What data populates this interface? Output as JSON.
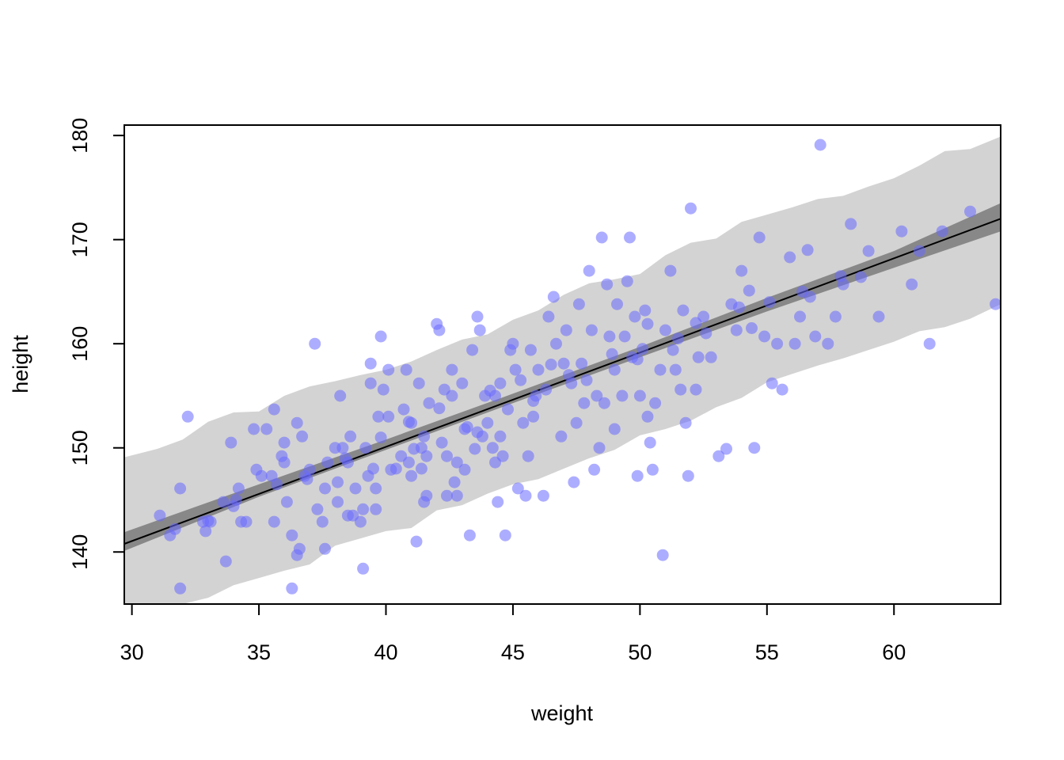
{
  "chart_data": {
    "type": "scatter",
    "xlabel": "weight",
    "ylabel": "height",
    "xlim": [
      29.7,
      64.2
    ],
    "ylim": [
      135,
      181
    ],
    "x_ticks": [
      30,
      35,
      40,
      45,
      50,
      55,
      60
    ],
    "y_ticks": [
      140,
      150,
      160,
      170,
      180
    ],
    "x_tick_labels": [
      "30",
      "35",
      "40",
      "45",
      "50",
      "55",
      "60"
    ],
    "y_tick_labels": [
      "140",
      "150",
      "160",
      "170",
      "180"
    ],
    "grid": false,
    "colors": {
      "points": "#6a6aff",
      "mean_line": "#000000",
      "mean_interval": "#888888",
      "prediction_interval": "#d3d3d3"
    },
    "mean_line": {
      "intercept": 113.9,
      "slope": 0.905
    },
    "mean_interval": {
      "x": [
        29.7,
        35,
        40,
        45,
        50,
        55,
        60,
        64.2
      ],
      "lower": [
        140.1,
        145.3,
        149.8,
        154.3,
        158.7,
        163.1,
        167.3,
        170.8
      ],
      "upper": [
        141.9,
        146.5,
        150.8,
        155.2,
        159.7,
        164.4,
        168.9,
        173.5
      ]
    },
    "prediction_interval": {
      "x": [
        29.7,
        31,
        32,
        33,
        34,
        35,
        36,
        37,
        38,
        39,
        40,
        41,
        42,
        43,
        44,
        45,
        46,
        47,
        48,
        49,
        50,
        51,
        52,
        53,
        54,
        55,
        56,
        57,
        58,
        59,
        60,
        61,
        62,
        63,
        64.2
      ],
      "lower": [
        134.5,
        134.8,
        135.0,
        135.6,
        136.8,
        137.5,
        138.2,
        138.8,
        140.6,
        141.3,
        142.0,
        142.3,
        144.0,
        144.5,
        145.6,
        146.5,
        147.0,
        148.0,
        149.0,
        149.8,
        151.2,
        151.8,
        152.6,
        153.9,
        154.8,
        156.3,
        157.1,
        157.9,
        158.6,
        159.4,
        160.2,
        161.2,
        161.6,
        162.4,
        163.8
      ],
      "upper": [
        149.1,
        149.9,
        150.8,
        152.5,
        153.4,
        153.5,
        155.0,
        155.9,
        156.4,
        157.0,
        157.5,
        158.3,
        159.4,
        160.4,
        160.9,
        162.3,
        163.2,
        164.7,
        165.8,
        166.2,
        166.7,
        168.5,
        169.7,
        170.1,
        171.7,
        172.4,
        173.1,
        173.9,
        174.2,
        175.1,
        175.9,
        177.1,
        178.5,
        178.7,
        179.9
      ]
    },
    "points": [
      [
        31.1,
        143.5
      ],
      [
        31.5,
        141.6
      ],
      [
        31.7,
        142.2
      ],
      [
        31.9,
        146.1
      ],
      [
        31.9,
        136.5
      ],
      [
        32.2,
        153.0
      ],
      [
        32.8,
        142.9
      ],
      [
        32.9,
        142.0
      ],
      [
        33.1,
        142.9
      ],
      [
        33.6,
        144.8
      ],
      [
        33.7,
        139.1
      ],
      [
        33.9,
        150.5
      ],
      [
        34.0,
        144.4
      ],
      [
        34.2,
        146.1
      ],
      [
        34.3,
        142.9
      ],
      [
        34.5,
        142.9
      ],
      [
        34.8,
        151.8
      ],
      [
        34.9,
        147.9
      ],
      [
        35.1,
        147.3
      ],
      [
        35.3,
        151.8
      ],
      [
        35.5,
        147.3
      ],
      [
        35.6,
        153.7
      ],
      [
        35.6,
        142.9
      ],
      [
        35.7,
        146.5
      ],
      [
        35.9,
        149.2
      ],
      [
        36.0,
        148.6
      ],
      [
        36.0,
        150.5
      ],
      [
        36.1,
        144.8
      ],
      [
        36.3,
        141.6
      ],
      [
        36.3,
        136.5
      ],
      [
        36.5,
        139.7
      ],
      [
        36.5,
        152.4
      ],
      [
        36.6,
        140.3
      ],
      [
        36.7,
        151.1
      ],
      [
        36.8,
        147.3
      ],
      [
        37.0,
        147.9
      ],
      [
        37.2,
        160.0
      ],
      [
        37.3,
        144.1
      ],
      [
        37.5,
        142.9
      ],
      [
        37.6,
        140.3
      ],
      [
        37.6,
        146.1
      ],
      [
        37.7,
        148.6
      ],
      [
        38.0,
        150.0
      ],
      [
        38.1,
        146.7
      ],
      [
        38.1,
        144.8
      ],
      [
        38.2,
        155.0
      ],
      [
        38.3,
        150.0
      ],
      [
        38.5,
        143.5
      ],
      [
        38.5,
        148.6
      ],
      [
        38.6,
        151.1
      ],
      [
        38.7,
        143.5
      ],
      [
        38.8,
        146.1
      ],
      [
        39.0,
        142.9
      ],
      [
        39.1,
        144.1
      ],
      [
        39.1,
        138.4
      ],
      [
        39.2,
        150.0
      ],
      [
        39.3,
        147.3
      ],
      [
        39.4,
        156.2
      ],
      [
        39.4,
        158.1
      ],
      [
        39.5,
        148.0
      ],
      [
        39.6,
        146.1
      ],
      [
        39.6,
        144.1
      ],
      [
        39.7,
        153.0
      ],
      [
        39.8,
        160.7
      ],
      [
        39.9,
        155.6
      ],
      [
        40.1,
        153.0
      ],
      [
        40.1,
        157.5
      ],
      [
        40.2,
        147.9
      ],
      [
        40.4,
        148.0
      ],
      [
        40.6,
        149.2
      ],
      [
        40.7,
        153.7
      ],
      [
        40.8,
        157.5
      ],
      [
        40.9,
        148.6
      ],
      [
        41.0,
        147.3
      ],
      [
        41.0,
        152.4
      ],
      [
        41.1,
        149.9
      ],
      [
        41.2,
        141.0
      ],
      [
        41.3,
        156.2
      ],
      [
        41.4,
        148.0
      ],
      [
        41.5,
        144.8
      ],
      [
        41.5,
        151.1
      ],
      [
        41.6,
        149.2
      ],
      [
        41.6,
        145.4
      ],
      [
        41.7,
        154.3
      ],
      [
        42.0,
        161.9
      ],
      [
        42.1,
        161.3
      ],
      [
        42.2,
        150.5
      ],
      [
        42.3,
        155.6
      ],
      [
        42.4,
        149.2
      ],
      [
        42.4,
        145.4
      ],
      [
        42.6,
        155.0
      ],
      [
        42.6,
        157.5
      ],
      [
        42.7,
        146.7
      ],
      [
        42.8,
        145.4
      ],
      [
        42.8,
        148.6
      ],
      [
        43.0,
        156.2
      ],
      [
        43.1,
        147.9
      ],
      [
        43.1,
        151.8
      ],
      [
        43.3,
        141.6
      ],
      [
        43.4,
        159.4
      ],
      [
        43.5,
        149.9
      ],
      [
        43.6,
        162.6
      ],
      [
        43.7,
        161.3
      ],
      [
        43.8,
        151.1
      ],
      [
        43.9,
        155.0
      ],
      [
        44.0,
        152.4
      ],
      [
        44.2,
        150.0
      ],
      [
        44.3,
        155.0
      ],
      [
        44.3,
        148.6
      ],
      [
        44.4,
        144.8
      ],
      [
        44.5,
        151.1
      ],
      [
        44.5,
        156.2
      ],
      [
        44.6,
        149.2
      ],
      [
        44.7,
        141.6
      ],
      [
        44.8,
        153.7
      ],
      [
        44.9,
        159.4
      ],
      [
        45.0,
        160.0
      ],
      [
        45.1,
        157.5
      ],
      [
        45.2,
        146.1
      ],
      [
        45.4,
        152.4
      ],
      [
        45.5,
        145.4
      ],
      [
        45.6,
        149.2
      ],
      [
        45.7,
        159.4
      ],
      [
        45.8,
        153.0
      ],
      [
        45.9,
        155.0
      ],
      [
        46.0,
        157.5
      ],
      [
        46.2,
        145.4
      ],
      [
        46.3,
        155.6
      ],
      [
        46.4,
        162.6
      ],
      [
        46.6,
        164.5
      ],
      [
        46.7,
        160.0
      ],
      [
        46.9,
        151.1
      ],
      [
        47.0,
        158.1
      ],
      [
        47.1,
        161.3
      ],
      [
        47.3,
        156.2
      ],
      [
        47.4,
        146.7
      ],
      [
        47.5,
        152.4
      ],
      [
        47.6,
        163.8
      ],
      [
        47.7,
        158.1
      ],
      [
        47.8,
        154.3
      ],
      [
        48.0,
        167.0
      ],
      [
        48.1,
        161.3
      ],
      [
        48.2,
        147.9
      ],
      [
        48.3,
        155.0
      ],
      [
        48.4,
        150.0
      ],
      [
        48.5,
        170.2
      ],
      [
        48.6,
        154.3
      ],
      [
        48.7,
        165.7
      ],
      [
        48.8,
        160.7
      ],
      [
        49.0,
        151.8
      ],
      [
        49.0,
        157.5
      ],
      [
        49.1,
        163.8
      ],
      [
        49.3,
        155.0
      ],
      [
        49.4,
        160.7
      ],
      [
        49.5,
        166.0
      ],
      [
        49.6,
        170.2
      ],
      [
        49.7,
        158.7
      ],
      [
        49.8,
        162.6
      ],
      [
        49.9,
        147.3
      ],
      [
        50.0,
        155.0
      ],
      [
        50.2,
        163.2
      ],
      [
        50.3,
        153.0
      ],
      [
        50.3,
        161.9
      ],
      [
        50.4,
        150.5
      ],
      [
        50.5,
        147.9
      ],
      [
        50.6,
        154.3
      ],
      [
        50.8,
        157.5
      ],
      [
        50.9,
        139.7
      ],
      [
        51.0,
        161.3
      ],
      [
        51.2,
        167.0
      ],
      [
        51.3,
        159.4
      ],
      [
        51.4,
        157.5
      ],
      [
        51.6,
        155.6
      ],
      [
        51.7,
        163.2
      ],
      [
        51.8,
        152.4
      ],
      [
        51.9,
        147.3
      ],
      [
        52.0,
        173.0
      ],
      [
        52.2,
        155.6
      ],
      [
        52.3,
        158.7
      ],
      [
        52.5,
        162.6
      ],
      [
        52.8,
        158.7
      ],
      [
        53.1,
        149.2
      ],
      [
        53.4,
        149.9
      ],
      [
        53.6,
        163.8
      ],
      [
        53.8,
        161.3
      ],
      [
        54.0,
        167.0
      ],
      [
        54.3,
        165.1
      ],
      [
        54.5,
        150.0
      ],
      [
        54.7,
        170.2
      ],
      [
        54.9,
        160.7
      ],
      [
        55.2,
        156.2
      ],
      [
        55.4,
        160.0
      ],
      [
        55.6,
        155.6
      ],
      [
        55.9,
        168.3
      ],
      [
        56.1,
        160.0
      ],
      [
        56.3,
        162.6
      ],
      [
        56.6,
        169.0
      ],
      [
        56.9,
        160.7
      ],
      [
        57.1,
        179.1
      ],
      [
        57.4,
        160.0
      ],
      [
        57.7,
        162.6
      ],
      [
        58.0,
        165.7
      ],
      [
        58.3,
        171.5
      ],
      [
        58.7,
        166.4
      ],
      [
        59.0,
        168.9
      ],
      [
        59.4,
        162.6
      ],
      [
        60.3,
        170.8
      ],
      [
        60.7,
        165.7
      ],
      [
        61.0,
        168.9
      ],
      [
        61.4,
        160.0
      ],
      [
        61.9,
        170.8
      ],
      [
        63.0,
        172.7
      ],
      [
        64.0,
        163.8
      ],
      [
        33.0,
        143.0
      ],
      [
        34.1,
        145.0
      ],
      [
        36.9,
        147.0
      ],
      [
        38.4,
        149.0
      ],
      [
        39.8,
        151.0
      ],
      [
        40.9,
        152.5
      ],
      [
        42.1,
        153.8
      ],
      [
        43.2,
        152.0
      ],
      [
        44.1,
        155.5
      ],
      [
        45.3,
        156.5
      ],
      [
        46.5,
        158.0
      ],
      [
        47.2,
        157.0
      ],
      [
        48.9,
        159.0
      ],
      [
        49.9,
        158.5
      ],
      [
        51.5,
        160.5
      ],
      [
        52.6,
        161.0
      ],
      [
        53.9,
        163.5
      ],
      [
        55.1,
        164.0
      ],
      [
        56.4,
        165.0
      ],
      [
        57.9,
        166.5
      ],
      [
        41.4,
        150.0
      ],
      [
        43.6,
        151.5
      ],
      [
        45.8,
        154.5
      ],
      [
        47.9,
        156.5
      ],
      [
        50.1,
        159.5
      ],
      [
        52.2,
        162.0
      ],
      [
        54.4,
        161.5
      ],
      [
        56.7,
        164.5
      ]
    ]
  }
}
